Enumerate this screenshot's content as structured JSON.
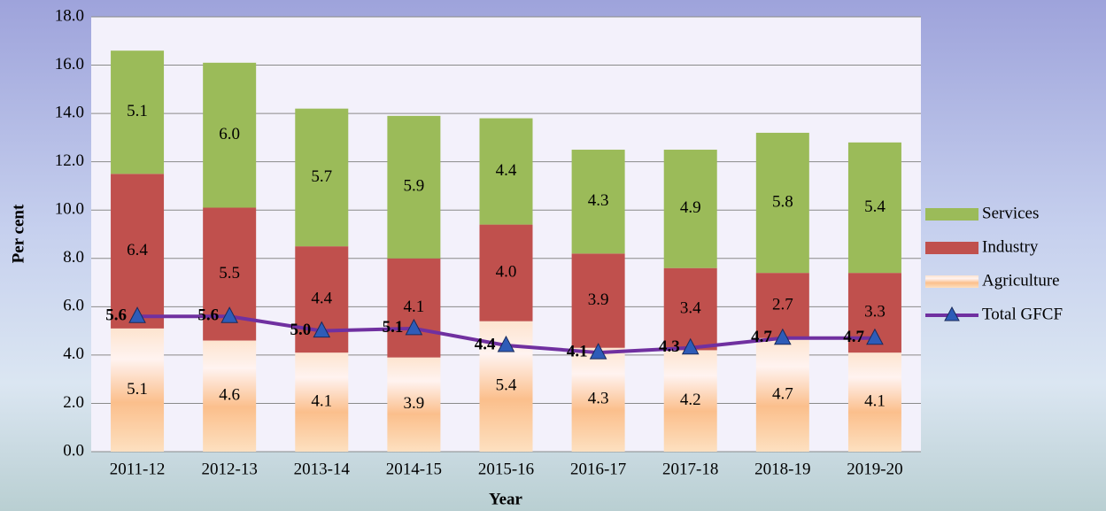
{
  "chart_data": {
    "type": "stacked_bar_line",
    "categories": [
      "2011-12",
      "2012-13",
      "2013-14",
      "2014-15",
      "2015-16",
      "2016-17",
      "2017-18",
      "2018-19",
      "2019-20"
    ],
    "series": [
      {
        "name": "Agriculture",
        "color": "#f7a35c",
        "type": "bar",
        "values": [
          5.1,
          4.6,
          4.1,
          3.9,
          5.4,
          4.3,
          4.2,
          4.7,
          4.1
        ],
        "value_labels": [
          "5.1",
          "4.6",
          "4.1",
          "3.9",
          "5.4",
          "4.3",
          "4.2",
          "4.7",
          "4.1"
        ]
      },
      {
        "name": "Industry",
        "color": "#c0504d",
        "type": "bar",
        "values": [
          6.4,
          5.5,
          4.4,
          4.1,
          4.0,
          3.9,
          3.4,
          2.7,
          3.3
        ],
        "value_labels": [
          "6.4",
          "5.5",
          "4.4",
          "4.1",
          "4.0",
          "3.9",
          "3.4",
          "2.7",
          "3.3"
        ]
      },
      {
        "name": "Services",
        "color": "#9bbb59",
        "type": "bar",
        "values": [
          5.1,
          6.0,
          5.7,
          5.9,
          4.4,
          4.3,
          4.9,
          5.8,
          5.4
        ],
        "value_labels": [
          "5.1",
          "6.0",
          "5.7",
          "5.9",
          "4.4",
          "4.3",
          "4.9",
          "5.8",
          "5.4"
        ]
      },
      {
        "name": "Total GFCF",
        "color": "#7030a0",
        "marker_color": "#2e5cb8",
        "type": "line",
        "values": [
          5.6,
          5.6,
          5.0,
          5.1,
          4.4,
          4.1,
          4.3,
          4.7,
          4.7
        ],
        "value_labels": [
          "5.6",
          "5.6",
          "5.0",
          "5.1",
          "4.4",
          "4.1",
          "4.3",
          "4.7",
          "4.7"
        ]
      }
    ],
    "x_label": "Year",
    "y_label": "Per cent",
    "ylim": [
      0,
      18
    ],
    "yticks": [
      {
        "value": 0,
        "label": "0.0"
      },
      {
        "value": 2,
        "label": "2.0"
      },
      {
        "value": 4,
        "label": "4.0"
      },
      {
        "value": 6,
        "label": "6.0"
      },
      {
        "value": 8,
        "label": "8.0"
      },
      {
        "value": 10,
        "label": "10.0"
      },
      {
        "value": 12,
        "label": "12.0"
      },
      {
        "value": 14,
        "label": "14.0"
      },
      {
        "value": 16,
        "label": "16.0"
      },
      {
        "value": 18,
        "label": "18.0"
      }
    ],
    "grid": true,
    "legend": "right"
  }
}
